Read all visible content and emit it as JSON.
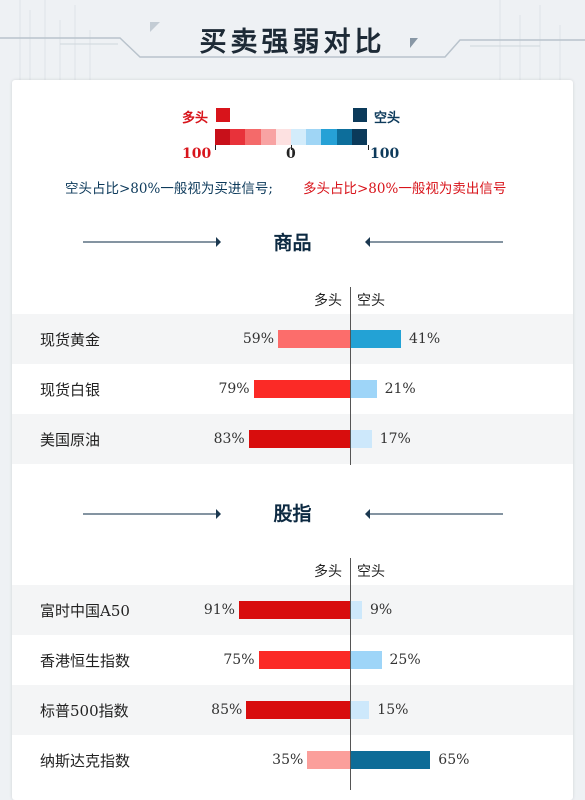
{
  "header": {
    "title": "买卖强弱对比"
  },
  "legend": {
    "long_label": "多头",
    "short_label": "空头",
    "long_color": "#d8141b",
    "short_color": "#0d3a5b",
    "scale_left": "100",
    "scale_mid": "0",
    "scale_right": "100",
    "scale_colors": [
      "#c8101a",
      "#e8323a",
      "#f46a6a",
      "#f8a3a3",
      "#fde1e1",
      "#d3ecfb",
      "#9fd5f5",
      "#26a1d6",
      "#0d6e9b",
      "#0b3a5a"
    ]
  },
  "notes": {
    "short_note": "空头占比>80%一般视为买进信号;",
    "long_note": "多头占比>80%一般视为卖出信号"
  },
  "colors": {
    "long_light": "#fb9f9b",
    "long_mid": "#fc6d6b",
    "long_strong": "#fb2a26",
    "long_deep": "#d80d0d",
    "short_pale": "#cde8fb",
    "short_light": "#9ed5f8",
    "short_mid": "#23a2d5",
    "short_deep": "#0e6c97"
  },
  "sections": [
    {
      "title": "商品",
      "col_long": "多头",
      "col_short": "空头",
      "rows": [
        {
          "name": "现货黄金",
          "long": 59,
          "short": 41,
          "long_text": "59%",
          "short_text": "41%"
        },
        {
          "name": "现货白银",
          "long": 79,
          "short": 21,
          "long_text": "79%",
          "short_text": "21%"
        },
        {
          "name": "美国原油",
          "long": 83,
          "short": 17,
          "long_text": "83%",
          "short_text": "17%"
        }
      ]
    },
    {
      "title": "股指",
      "col_long": "多头",
      "col_short": "空头",
      "rows": [
        {
          "name": "富时中国A50",
          "long": 91,
          "short": 9,
          "long_text": "91%",
          "short_text": "9%"
        },
        {
          "name": "香港恒生指数",
          "long": 75,
          "short": 25,
          "long_text": "75%",
          "short_text": "25%"
        },
        {
          "name": "标普500指数",
          "long": 85,
          "short": 15,
          "long_text": "85%",
          "short_text": "15%"
        },
        {
          "name": "纳斯达克指数",
          "long": 35,
          "short": 65,
          "long_text": "35%",
          "short_text": "65%"
        }
      ]
    }
  ]
}
